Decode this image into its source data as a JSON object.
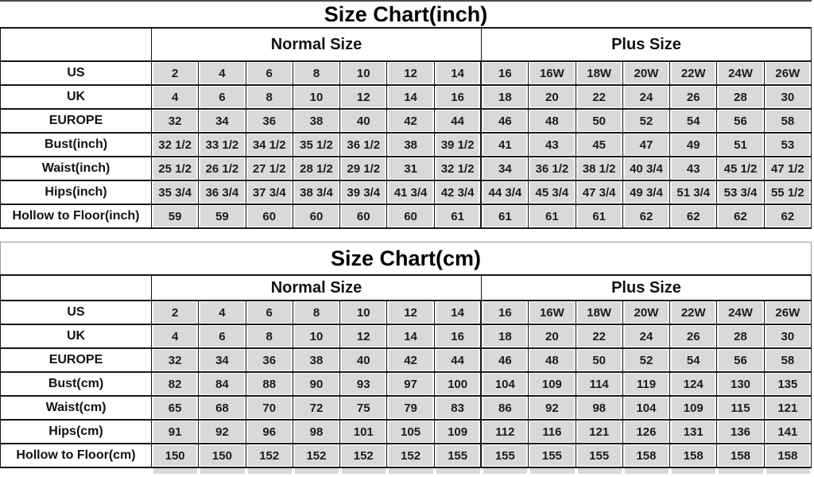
{
  "colors": {
    "cell_fill": "#d9d9d9",
    "grid_border": "#161616",
    "text": "#1c1c1c",
    "background": "#ffffff"
  },
  "chart_data": [
    {
      "type": "table",
      "title": "Size Chart(inch)",
      "group_headers": {
        "normal_label": "Normal Size",
        "plus_label": "Plus Size"
      },
      "columns_per_group": 7,
      "rows": [
        {
          "label": "US",
          "values": [
            "2",
            "4",
            "6",
            "8",
            "10",
            "12",
            "14",
            "16",
            "16W",
            "18W",
            "20W",
            "22W",
            "24W",
            "26W"
          ]
        },
        {
          "label": "UK",
          "values": [
            "4",
            "6",
            "8",
            "10",
            "12",
            "14",
            "16",
            "18",
            "20",
            "22",
            "24",
            "26",
            "28",
            "30"
          ]
        },
        {
          "label": "EUROPE",
          "values": [
            "32",
            "34",
            "36",
            "38",
            "40",
            "42",
            "44",
            "46",
            "48",
            "50",
            "52",
            "54",
            "56",
            "58"
          ]
        },
        {
          "label": "Bust(inch)",
          "values": [
            "32 1/2",
            "33 1/2",
            "34 1/2",
            "35 1/2",
            "36 1/2",
            "38",
            "39 1/2",
            "41",
            "43",
            "45",
            "47",
            "49",
            "51",
            "53"
          ]
        },
        {
          "label": "Waist(inch)",
          "values": [
            "25 1/2",
            "26 1/2",
            "27 1/2",
            "28 1/2",
            "29 1/2",
            "31",
            "32 1/2",
            "34",
            "36 1/2",
            "38 1/2",
            "40 3/4",
            "43",
            "45 1/2",
            "47 1/2"
          ]
        },
        {
          "label": "Hips(inch)",
          "values": [
            "35 3/4",
            "36 3/4",
            "37 3/4",
            "38 3/4",
            "39 3/4",
            "41 3/4",
            "42 3/4",
            "44 3/4",
            "45 3/4",
            "47 3/4",
            "49 3/4",
            "51 3/4",
            "53 3/4",
            "55 1/2"
          ]
        },
        {
          "label": "Hollow to Floor(inch)",
          "values": [
            "59",
            "59",
            "60",
            "60",
            "60",
            "60",
            "61",
            "61",
            "61",
            "61",
            "62",
            "62",
            "62",
            "62"
          ]
        }
      ]
    },
    {
      "type": "table",
      "title": "Size Chart(cm)",
      "group_headers": {
        "normal_label": "Normal Size",
        "plus_label": "Plus Size"
      },
      "columns_per_group": 7,
      "rows": [
        {
          "label": "US",
          "values": [
            "2",
            "4",
            "6",
            "8",
            "10",
            "12",
            "14",
            "16",
            "16W",
            "18W",
            "20W",
            "22W",
            "24W",
            "26W"
          ]
        },
        {
          "label": "UK",
          "values": [
            "4",
            "6",
            "8",
            "10",
            "12",
            "14",
            "16",
            "18",
            "20",
            "22",
            "24",
            "26",
            "28",
            "30"
          ]
        },
        {
          "label": "EUROPE",
          "values": [
            "32",
            "34",
            "36",
            "38",
            "40",
            "42",
            "44",
            "46",
            "48",
            "50",
            "52",
            "54",
            "56",
            "58"
          ]
        },
        {
          "label": "Bust(cm)",
          "values": [
            "82",
            "84",
            "88",
            "90",
            "93",
            "97",
            "100",
            "104",
            "109",
            "114",
            "119",
            "124",
            "130",
            "135"
          ]
        },
        {
          "label": "Waist(cm)",
          "values": [
            "65",
            "68",
            "70",
            "72",
            "75",
            "79",
            "83",
            "86",
            "92",
            "98",
            "104",
            "109",
            "115",
            "121"
          ]
        },
        {
          "label": "Hips(cm)",
          "values": [
            "91",
            "92",
            "96",
            "98",
            "101",
            "105",
            "109",
            "112",
            "116",
            "121",
            "126",
            "131",
            "136",
            "141"
          ]
        },
        {
          "label": "Hollow to Floor(cm)",
          "values": [
            "150",
            "150",
            "152",
            "152",
            "152",
            "152",
            "155",
            "155",
            "155",
            "155",
            "158",
            "158",
            "158",
            "158"
          ]
        }
      ]
    }
  ]
}
